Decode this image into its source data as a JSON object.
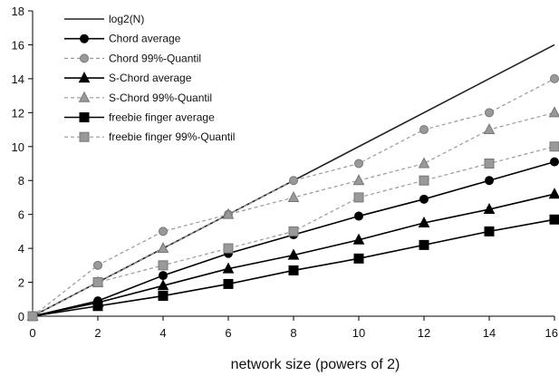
{
  "chart_data": {
    "type": "line",
    "title": "",
    "xlabel": "network size (powers of 2)",
    "ylabel": "",
    "xlim": [
      0,
      16
    ],
    "ylim": [
      0,
      18
    ],
    "xticks": [
      0,
      2,
      4,
      6,
      8,
      10,
      12,
      14,
      16
    ],
    "yticks": [
      0,
      2,
      4,
      6,
      8,
      10,
      12,
      14,
      16,
      18
    ],
    "grid": false,
    "legend_position": "top-left",
    "series": [
      {
        "name": "log2(N)",
        "marker": "none",
        "dashed": false,
        "color": "#222222",
        "x": [
          0,
          16
        ],
        "y": [
          0,
          16
        ]
      },
      {
        "name": "Chord average",
        "marker": "circle",
        "dashed": false,
        "color": "#000000",
        "x": [
          0,
          2,
          4,
          6,
          8,
          10,
          12,
          14,
          16
        ],
        "y": [
          0,
          0.9,
          2.4,
          3.7,
          4.8,
          5.9,
          6.9,
          8.0,
          9.1
        ]
      },
      {
        "name": "Chord 99%-Quantil",
        "marker": "circle",
        "dashed": true,
        "color": "#999999",
        "x": [
          0,
          2,
          4,
          6,
          8,
          10,
          12,
          14,
          16
        ],
        "y": [
          0,
          3,
          5,
          6,
          8,
          9,
          11,
          12,
          14
        ]
      },
      {
        "name": "S-Chord average",
        "marker": "triangle",
        "dashed": false,
        "color": "#000000",
        "x": [
          0,
          2,
          4,
          6,
          8,
          10,
          12,
          14,
          16
        ],
        "y": [
          0,
          0.8,
          1.8,
          2.8,
          3.6,
          4.5,
          5.5,
          6.3,
          7.2
        ]
      },
      {
        "name": "S-Chord 99%-Quantil",
        "marker": "triangle",
        "dashed": true,
        "color": "#999999",
        "x": [
          0,
          2,
          4,
          6,
          8,
          10,
          12,
          14,
          16
        ],
        "y": [
          0,
          2,
          4,
          6,
          7,
          8,
          9,
          11,
          12
        ]
      },
      {
        "name": "freebie finger average",
        "marker": "square",
        "dashed": false,
        "color": "#000000",
        "x": [
          0,
          2,
          4,
          6,
          8,
          10,
          12,
          14,
          16
        ],
        "y": [
          0,
          0.6,
          1.2,
          1.9,
          2.7,
          3.4,
          4.2,
          5.0,
          5.7
        ]
      },
      {
        "name": "freebie finger 99%-Quantil",
        "marker": "square",
        "dashed": true,
        "color": "#999999",
        "x": [
          0,
          2,
          4,
          6,
          8,
          10,
          12,
          14,
          16
        ],
        "y": [
          0,
          2,
          3,
          4,
          5,
          7,
          8,
          9,
          10
        ]
      }
    ]
  }
}
